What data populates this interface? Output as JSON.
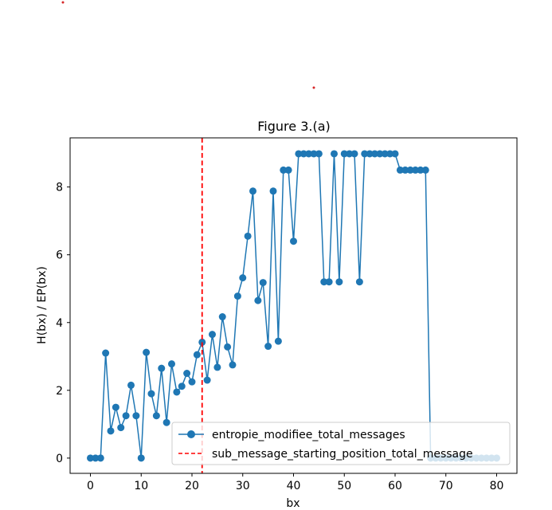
{
  "chart_data": {
    "type": "line",
    "title": "Figure 3.(a)",
    "xlabel": "bx",
    "ylabel": "H(bx) / EP(bx)",
    "xlim": [
      -4,
      84
    ],
    "ylim": [
      -0.45,
      9.45
    ],
    "xticks": [
      0,
      10,
      20,
      30,
      40,
      50,
      60,
      70,
      80
    ],
    "yticks": [
      0,
      2,
      4,
      6,
      8
    ],
    "legend_position": "lower right",
    "series": [
      {
        "name": "entropie_modifiee_total_messages",
        "color": "#1f77b4",
        "marker": "circle",
        "x": [
          0,
          1,
          2,
          3,
          4,
          5,
          6,
          7,
          8,
          9,
          10,
          11,
          12,
          13,
          14,
          15,
          16,
          17,
          18,
          19,
          20,
          21,
          22,
          23,
          24,
          25,
          26,
          27,
          28,
          29,
          30,
          31,
          32,
          33,
          34,
          35,
          36,
          37,
          38,
          39,
          40,
          41,
          42,
          43,
          44,
          45,
          46,
          47,
          48,
          49,
          50,
          51,
          52,
          53,
          54,
          55,
          56,
          57,
          58,
          59,
          60,
          61,
          62,
          63,
          64,
          65,
          66,
          67,
          68,
          69,
          70,
          71,
          72,
          73,
          74,
          75,
          76,
          77,
          78,
          79,
          80
        ],
        "y": [
          0.0,
          0.0,
          0.0,
          3.1,
          0.8,
          1.5,
          0.9,
          1.25,
          2.15,
          1.25,
          0.0,
          3.12,
          1.9,
          1.25,
          2.65,
          1.05,
          2.78,
          1.95,
          2.12,
          2.5,
          2.25,
          3.05,
          3.42,
          2.3,
          3.65,
          2.68,
          4.17,
          3.28,
          2.75,
          4.78,
          5.32,
          6.55,
          7.88,
          4.65,
          5.18,
          3.3,
          7.88,
          3.45,
          8.5,
          8.5,
          6.4,
          8.98,
          8.98,
          8.98,
          8.98,
          8.98,
          5.2,
          5.2,
          8.98,
          5.2,
          8.98,
          8.98,
          8.98,
          5.2,
          8.98,
          8.98,
          8.98,
          8.98,
          8.98,
          8.98,
          8.98,
          8.5,
          8.5,
          8.5,
          8.5,
          8.5,
          8.5,
          0.0,
          0.0,
          0.0,
          0.0,
          0.0,
          0.0,
          0.0,
          0.0,
          0.0,
          0.0,
          0.0,
          0.0,
          0.0,
          0.0
        ]
      }
    ],
    "vertical_lines": [
      {
        "name": "sub_message_starting_position_total_message",
        "x": 22,
        "color": "#ff0000",
        "style": "dashed"
      }
    ]
  }
}
